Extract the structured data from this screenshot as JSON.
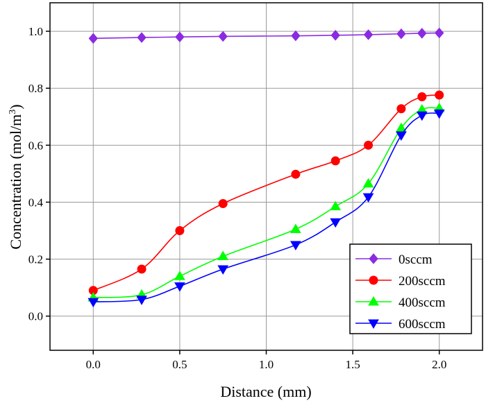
{
  "chart_data": {
    "type": "line",
    "xlabel": "Distance (mm)",
    "ylabel_main": "Concentration (mol/m",
    "ylabel_sup": "3",
    "ylabel_close": ")",
    "xlim": [
      -0.25,
      2.25
    ],
    "ylim": [
      -0.12,
      1.1
    ],
    "xticks": [
      "0.0",
      "0.5",
      "1.0",
      "1.5",
      "2.0"
    ],
    "xtick_values": [
      0.0,
      0.5,
      1.0,
      1.5,
      2.0
    ],
    "yticks": [
      "0.0",
      "0.2",
      "0.4",
      "0.6",
      "0.8",
      "1.0"
    ],
    "ytick_values": [
      0.0,
      0.2,
      0.4,
      0.6,
      0.8,
      1.0
    ],
    "grid": true,
    "legend_position": "bottom-right",
    "series": [
      {
        "name": "0sccm",
        "color": "#8a2be2",
        "marker": "diamond",
        "x": [
          0.0,
          0.28,
          0.5,
          0.75,
          1.17,
          1.4,
          1.59,
          1.78,
          1.9,
          2.0
        ],
        "y": [
          0.975,
          0.978,
          0.98,
          0.982,
          0.984,
          0.986,
          0.988,
          0.991,
          0.993,
          0.994
        ]
      },
      {
        "name": "200sccm",
        "color": "#ff0000",
        "marker": "circle",
        "x": [
          0.0,
          0.28,
          0.5,
          0.75,
          1.17,
          1.4,
          1.59,
          1.78,
          1.9,
          2.0
        ],
        "y": [
          0.09,
          0.165,
          0.3,
          0.395,
          0.498,
          0.545,
          0.6,
          0.728,
          0.77,
          0.776
        ]
      },
      {
        "name": "400sccm",
        "color": "#00ff00",
        "marker": "triangle-up",
        "x": [
          0.0,
          0.28,
          0.5,
          0.75,
          1.17,
          1.4,
          1.59,
          1.78,
          1.9,
          2.0
        ],
        "y": [
          0.065,
          0.075,
          0.14,
          0.21,
          0.305,
          0.385,
          0.465,
          0.66,
          0.725,
          0.73
        ]
      },
      {
        "name": "600sccm",
        "color": "#0000ff",
        "marker": "triangle-down",
        "x": [
          0.0,
          0.28,
          0.5,
          0.75,
          1.17,
          1.4,
          1.59,
          1.78,
          1.9,
          2.0
        ],
        "y": [
          0.05,
          0.058,
          0.105,
          0.165,
          0.25,
          0.33,
          0.418,
          0.635,
          0.705,
          0.712
        ]
      }
    ]
  }
}
